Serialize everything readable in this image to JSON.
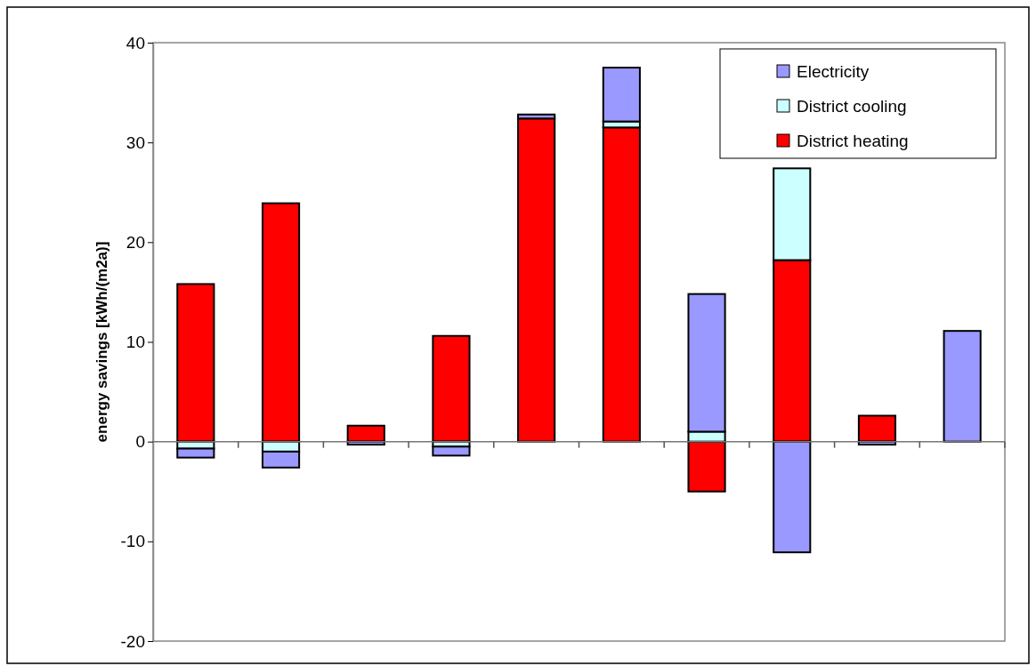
{
  "chart_data": {
    "type": "bar",
    "stacked": true,
    "ylabel": "energy savings [kWh/(m2a)]",
    "categories": [
      null,
      null,
      null,
      null,
      null,
      null,
      null,
      null,
      null,
      null
    ],
    "series": [
      {
        "name": "District heating",
        "color": "#ff0000",
        "values": [
          15.8,
          23.9,
          1.6,
          10.6,
          32.4,
          31.5,
          -5.0,
          18.2,
          2.6,
          0
        ]
      },
      {
        "name": "District cooling",
        "color": "#ccffff",
        "values": [
          -0.7,
          -1.0,
          null,
          -0.5,
          0,
          0.6,
          1.0,
          9.2,
          0,
          0
        ]
      },
      {
        "name": "Electricity",
        "color": "#9999ff",
        "values": [
          -0.9,
          -1.6,
          -0.3,
          -0.9,
          0.4,
          5.4,
          13.8,
          -11.1,
          -0.3,
          11.1
        ]
      }
    ],
    "ylim": [
      -20,
      40
    ],
    "yticks": [
      -20,
      -10,
      0,
      10,
      20,
      30,
      40
    ],
    "legend": "top right"
  }
}
